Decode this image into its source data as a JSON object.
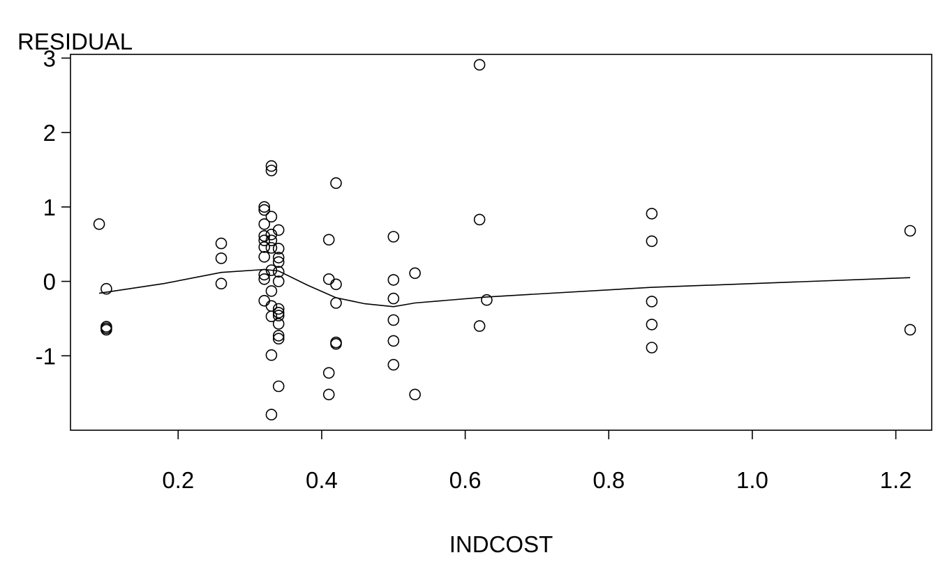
{
  "chart_data": {
    "type": "scatter",
    "title": "",
    "xlabel": "INDCOST",
    "ylabel": "RESIDUAL",
    "xlim": [
      0.05,
      1.25
    ],
    "ylim": [
      -2,
      3.05
    ],
    "x_ticks": [
      0.2,
      0.4,
      0.6,
      0.8,
      1.0,
      1.2
    ],
    "x_tick_labels": [
      "0.2",
      "0.4",
      "0.6",
      "0.8",
      "1.0",
      "1.2"
    ],
    "y_ticks": [
      -1,
      0,
      1,
      2,
      3
    ],
    "y_tick_labels": [
      "-1",
      "0",
      "1",
      "2",
      "3"
    ],
    "grid": false,
    "legend": "none",
    "points": [
      {
        "x": 0.09,
        "y": 0.77
      },
      {
        "x": 0.1,
        "y": -0.1
      },
      {
        "x": 0.1,
        "y": -0.61
      },
      {
        "x": 0.1,
        "y": -0.63
      },
      {
        "x": 0.1,
        "y": -0.65
      },
      {
        "x": 0.26,
        "y": 0.51
      },
      {
        "x": 0.26,
        "y": 0.31
      },
      {
        "x": 0.26,
        "y": -0.03
      },
      {
        "x": 0.32,
        "y": 1.0
      },
      {
        "x": 0.32,
        "y": 0.96
      },
      {
        "x": 0.32,
        "y": 0.77
      },
      {
        "x": 0.32,
        "y": 0.61
      },
      {
        "x": 0.32,
        "y": 0.55
      },
      {
        "x": 0.32,
        "y": 0.46
      },
      {
        "x": 0.32,
        "y": 0.33
      },
      {
        "x": 0.32,
        "y": 0.09
      },
      {
        "x": 0.32,
        "y": 0.03
      },
      {
        "x": 0.32,
        "y": -0.26
      },
      {
        "x": 0.33,
        "y": 1.55
      },
      {
        "x": 0.33,
        "y": 1.49
      },
      {
        "x": 0.33,
        "y": 0.87
      },
      {
        "x": 0.33,
        "y": 0.63
      },
      {
        "x": 0.33,
        "y": 0.55
      },
      {
        "x": 0.33,
        "y": 0.45
      },
      {
        "x": 0.33,
        "y": 0.15
      },
      {
        "x": 0.33,
        "y": -0.13
      },
      {
        "x": 0.33,
        "y": -0.33
      },
      {
        "x": 0.33,
        "y": -0.47
      },
      {
        "x": 0.33,
        "y": -0.99
      },
      {
        "x": 0.33,
        "y": -1.79
      },
      {
        "x": 0.34,
        "y": 0.69
      },
      {
        "x": 0.34,
        "y": 0.44
      },
      {
        "x": 0.34,
        "y": 0.32
      },
      {
        "x": 0.34,
        "y": 0.26
      },
      {
        "x": 0.34,
        "y": 0.13
      },
      {
        "x": 0.34,
        "y": 0.0
      },
      {
        "x": 0.34,
        "y": -0.37
      },
      {
        "x": 0.34,
        "y": -0.42
      },
      {
        "x": 0.34,
        "y": -0.46
      },
      {
        "x": 0.34,
        "y": -0.57
      },
      {
        "x": 0.34,
        "y": -0.73
      },
      {
        "x": 0.34,
        "y": -0.77
      },
      {
        "x": 0.34,
        "y": -1.41
      },
      {
        "x": 0.41,
        "y": 0.56
      },
      {
        "x": 0.41,
        "y": 0.03
      },
      {
        "x": 0.41,
        "y": -1.23
      },
      {
        "x": 0.41,
        "y": -1.52
      },
      {
        "x": 0.42,
        "y": 1.32
      },
      {
        "x": 0.42,
        "y": -0.04
      },
      {
        "x": 0.42,
        "y": -0.29
      },
      {
        "x": 0.42,
        "y": -0.82
      },
      {
        "x": 0.42,
        "y": -0.84
      },
      {
        "x": 0.5,
        "y": 0.6
      },
      {
        "x": 0.5,
        "y": 0.02
      },
      {
        "x": 0.5,
        "y": -0.23
      },
      {
        "x": 0.5,
        "y": -0.52
      },
      {
        "x": 0.5,
        "y": -0.8
      },
      {
        "x": 0.5,
        "y": -1.12
      },
      {
        "x": 0.53,
        "y": 0.11
      },
      {
        "x": 0.53,
        "y": -1.52
      },
      {
        "x": 0.62,
        "y": 2.91
      },
      {
        "x": 0.62,
        "y": 0.83
      },
      {
        "x": 0.62,
        "y": -0.6
      },
      {
        "x": 0.63,
        "y": -0.25
      },
      {
        "x": 0.86,
        "y": 0.91
      },
      {
        "x": 0.86,
        "y": 0.54
      },
      {
        "x": 0.86,
        "y": -0.27
      },
      {
        "x": 0.86,
        "y": -0.58
      },
      {
        "x": 0.86,
        "y": -0.89
      },
      {
        "x": 1.22,
        "y": 0.68
      },
      {
        "x": 1.22,
        "y": -0.65
      }
    ],
    "smooth_line": [
      {
        "x": 0.09,
        "y": -0.16
      },
      {
        "x": 0.18,
        "y": -0.03
      },
      {
        "x": 0.26,
        "y": 0.12
      },
      {
        "x": 0.32,
        "y": 0.16
      },
      {
        "x": 0.34,
        "y": 0.14
      },
      {
        "x": 0.38,
        "y": -0.05
      },
      {
        "x": 0.42,
        "y": -0.22
      },
      {
        "x": 0.46,
        "y": -0.3
      },
      {
        "x": 0.5,
        "y": -0.34
      },
      {
        "x": 0.53,
        "y": -0.29
      },
      {
        "x": 0.63,
        "y": -0.21
      },
      {
        "x": 0.86,
        "y": -0.08
      },
      {
        "x": 1.22,
        "y": 0.05
      }
    ]
  }
}
